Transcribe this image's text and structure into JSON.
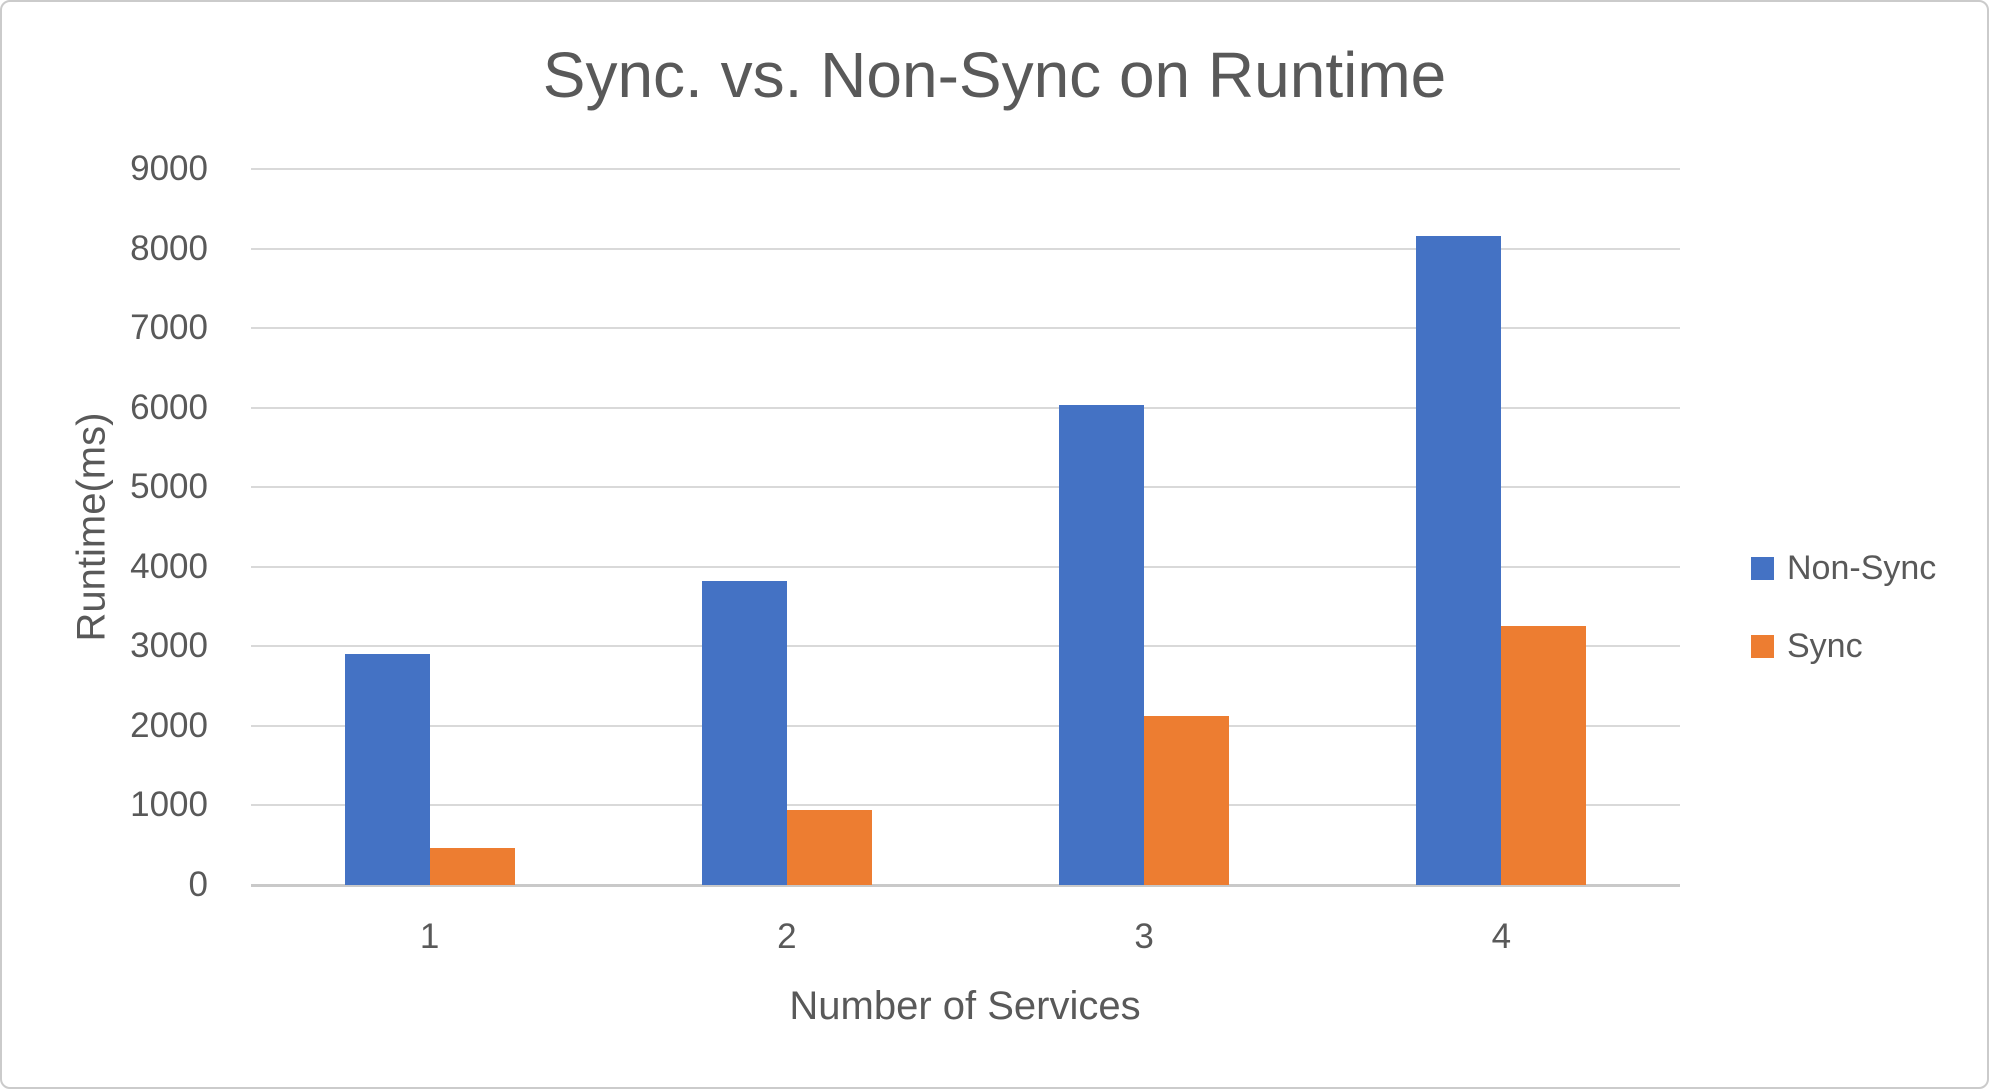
{
  "chart": {
    "title": "Sync. vs. Non-Sync on Runtime"
  },
  "chart_data": {
    "type": "bar",
    "title": "Sync. vs. Non-Sync on Runtime",
    "categories": [
      "1",
      "2",
      "3",
      "4"
    ],
    "series": [
      {
        "name": "Non-Sync",
        "color": "#4472C4",
        "values": [
          2900,
          3825,
          6030,
          8160
        ]
      },
      {
        "name": "Sync",
        "color": "#ED7D31",
        "values": [
          460,
          940,
          2120,
          3260
        ]
      }
    ],
    "xlabel": "Number of Services",
    "ylabel": "Runtime(ms)",
    "ylim": [
      0,
      9000
    ],
    "ytick_step": 1000,
    "ytick_labels": [
      "0",
      "1000",
      "2000",
      "3000",
      "4000",
      "5000",
      "6000",
      "7000",
      "8000",
      "9000"
    ],
    "grid": true,
    "gridline_color": "#d9d9d9",
    "axis_line_color": "#c9c9c9",
    "text_color": "#595959",
    "legend_position": "right"
  }
}
